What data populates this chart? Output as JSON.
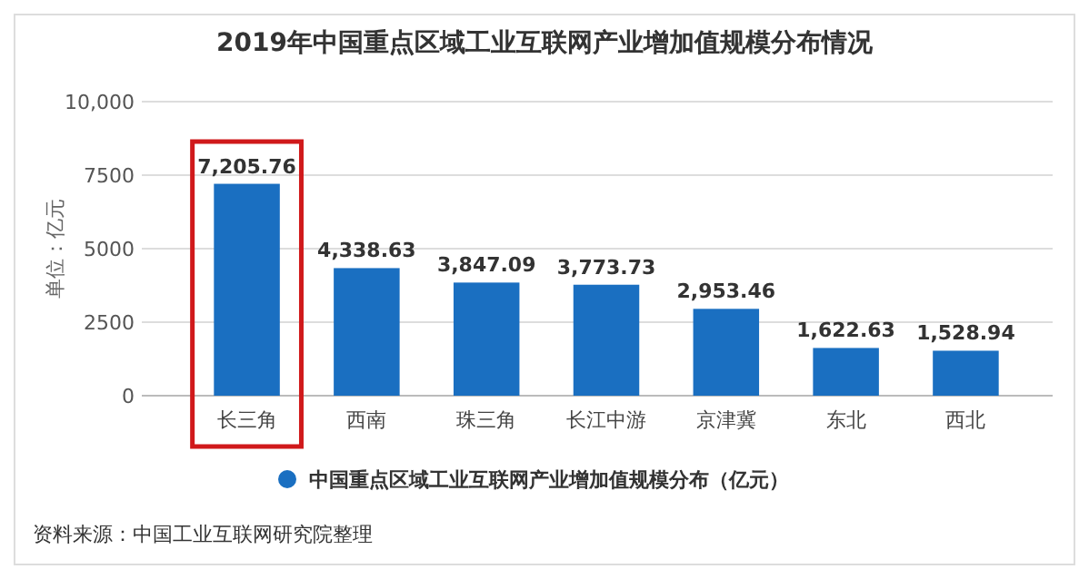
{
  "chart_data": {
    "type": "bar",
    "title": "2019年中国重点区域工业互联网产业增加值规模分布情况",
    "ylabel": "单位：亿元",
    "categories": [
      "长三角",
      "西南",
      "珠三角",
      "长江中游",
      "京津冀",
      "东北",
      "西北"
    ],
    "series": [
      {
        "name": "中国重点区域工业互联网产业增加值规模分布（亿元）",
        "color": "#1a6fc1",
        "values": [
          7205.76,
          4338.63,
          3847.09,
          3773.73,
          2953.46,
          1622.63,
          1528.94
        ]
      }
    ],
    "value_labels": [
      "7,205.76",
      "4,338.63",
      "3,847.09",
      "3,773.73",
      "2,953.46",
      "1,622.63",
      "1,528.94"
    ],
    "ylim": [
      0,
      10000
    ],
    "yticks": [
      0,
      2500,
      5000,
      7500,
      {
        "value": 10000,
        "label": "10,000"
      }
    ],
    "grid": "y",
    "legend": "bottom",
    "annotations": [
      "资料来源：中国工业互联网研究院整理"
    ]
  }
}
